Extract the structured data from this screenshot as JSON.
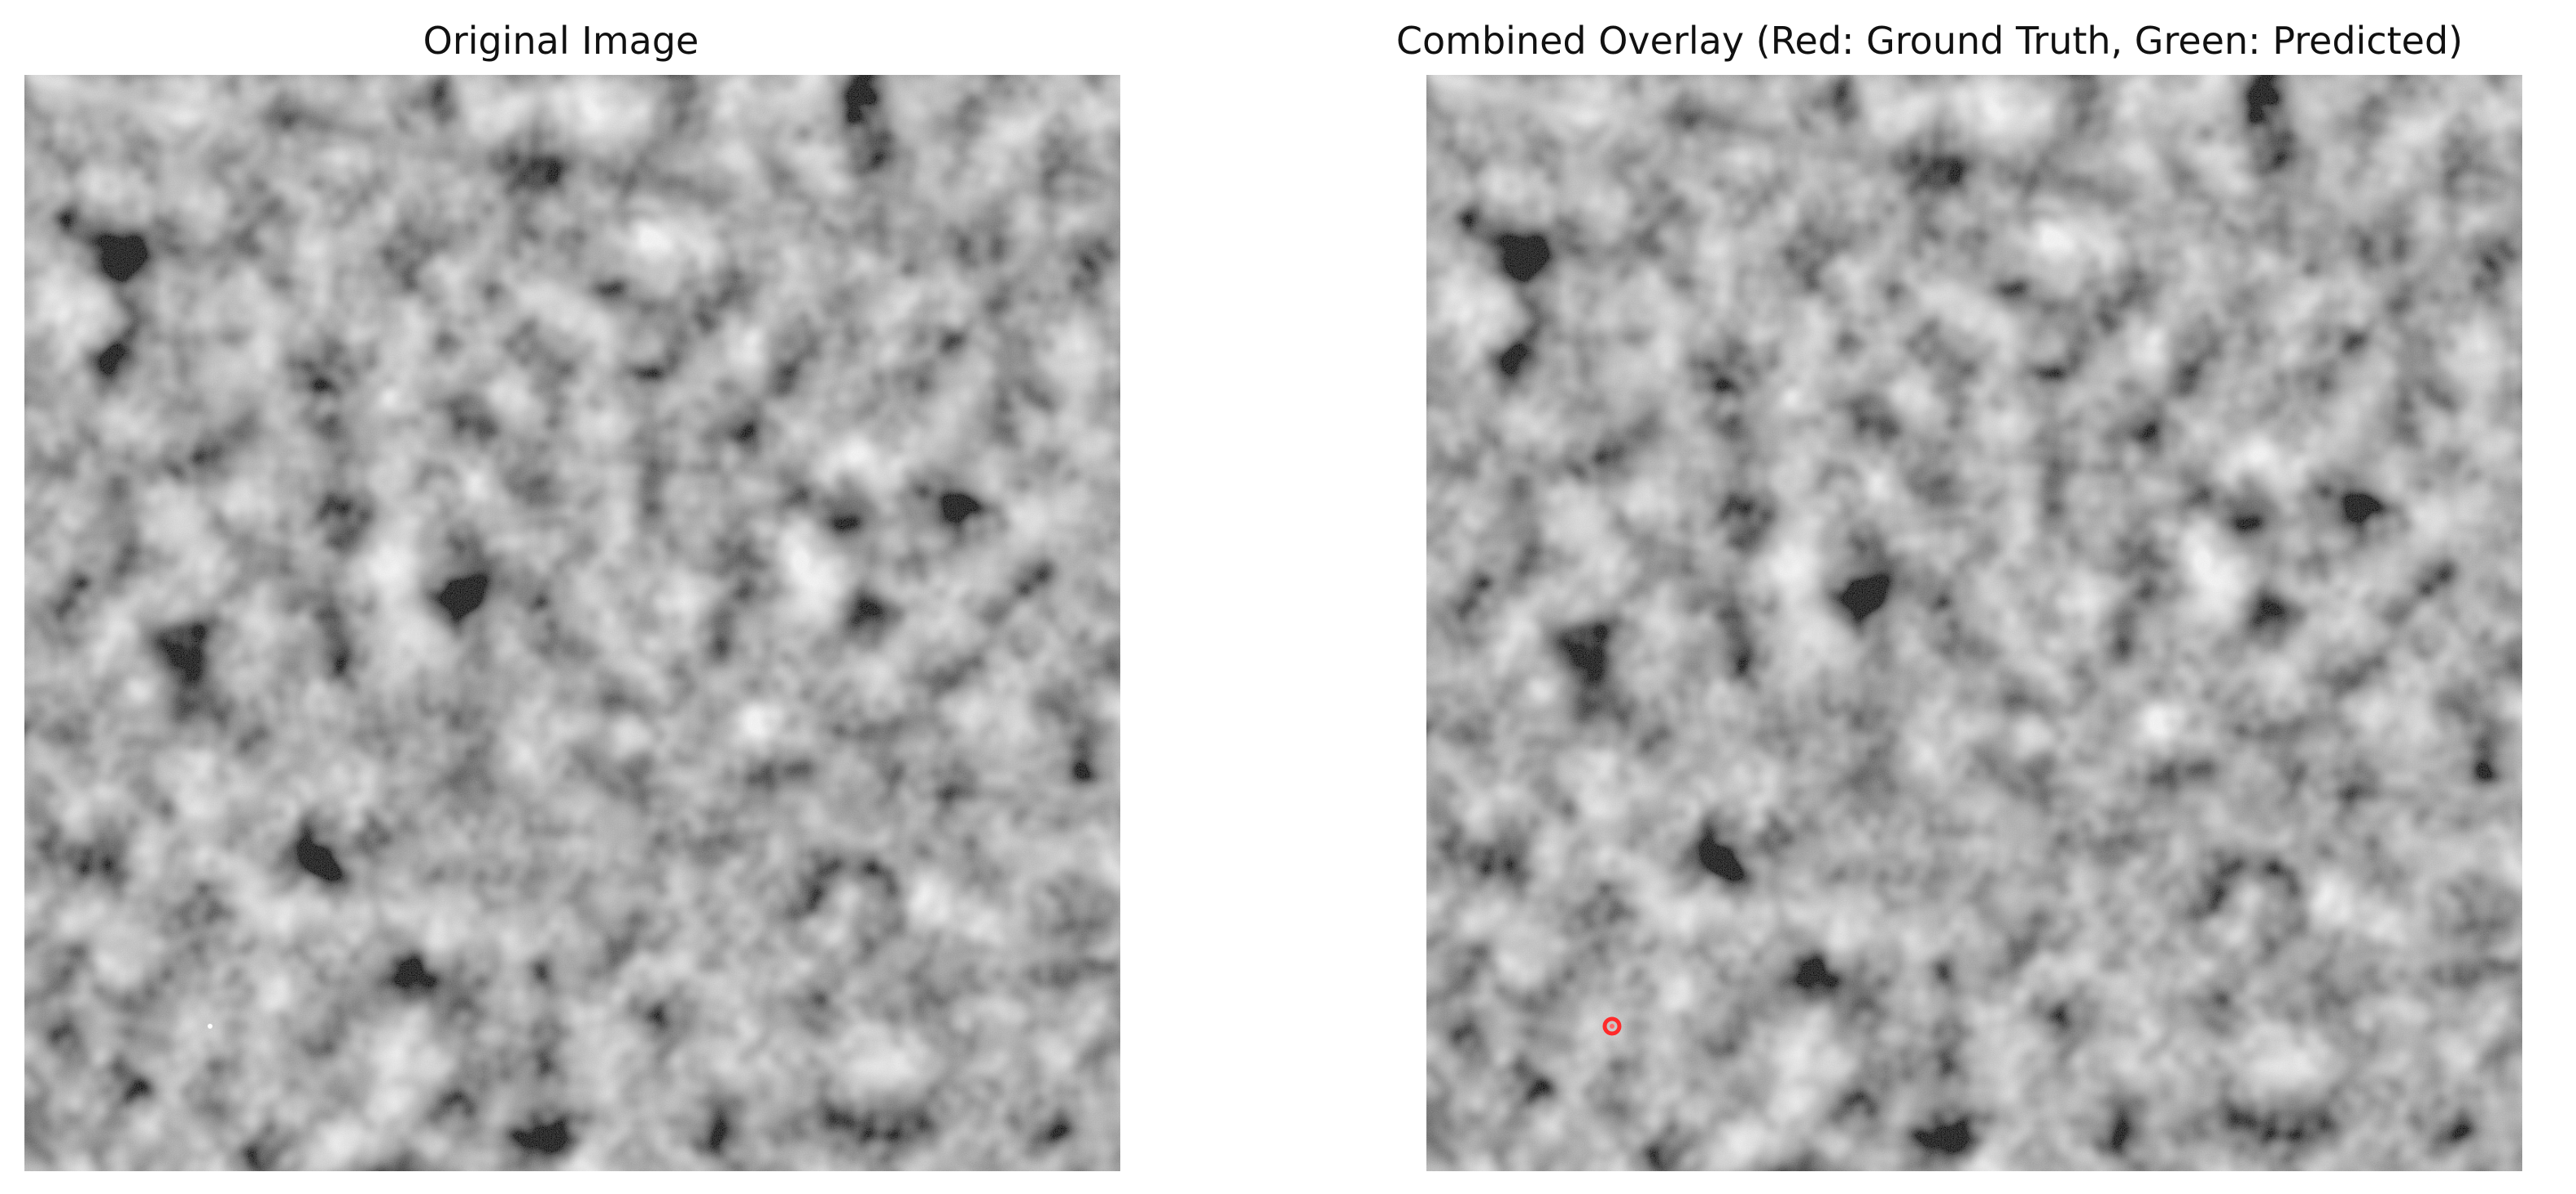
{
  "panels": [
    {
      "title": "Original Image",
      "image": "grayscale noisy speckle texture",
      "marker": {
        "color": "#ffffff",
        "style": "tiny bright dot"
      }
    },
    {
      "title": "Combined Overlay (Red: Ground Truth, Green: Predicted)",
      "image": "same grayscale speckle texture",
      "ground_truth_marker": {
        "color": "#ff2a2a",
        "style": "small red ring"
      }
    }
  ],
  "colors": {
    "background": "#ffffff",
    "text": "#111111",
    "ground_truth": "#ff2a2a",
    "predicted": "#00ff00"
  }
}
